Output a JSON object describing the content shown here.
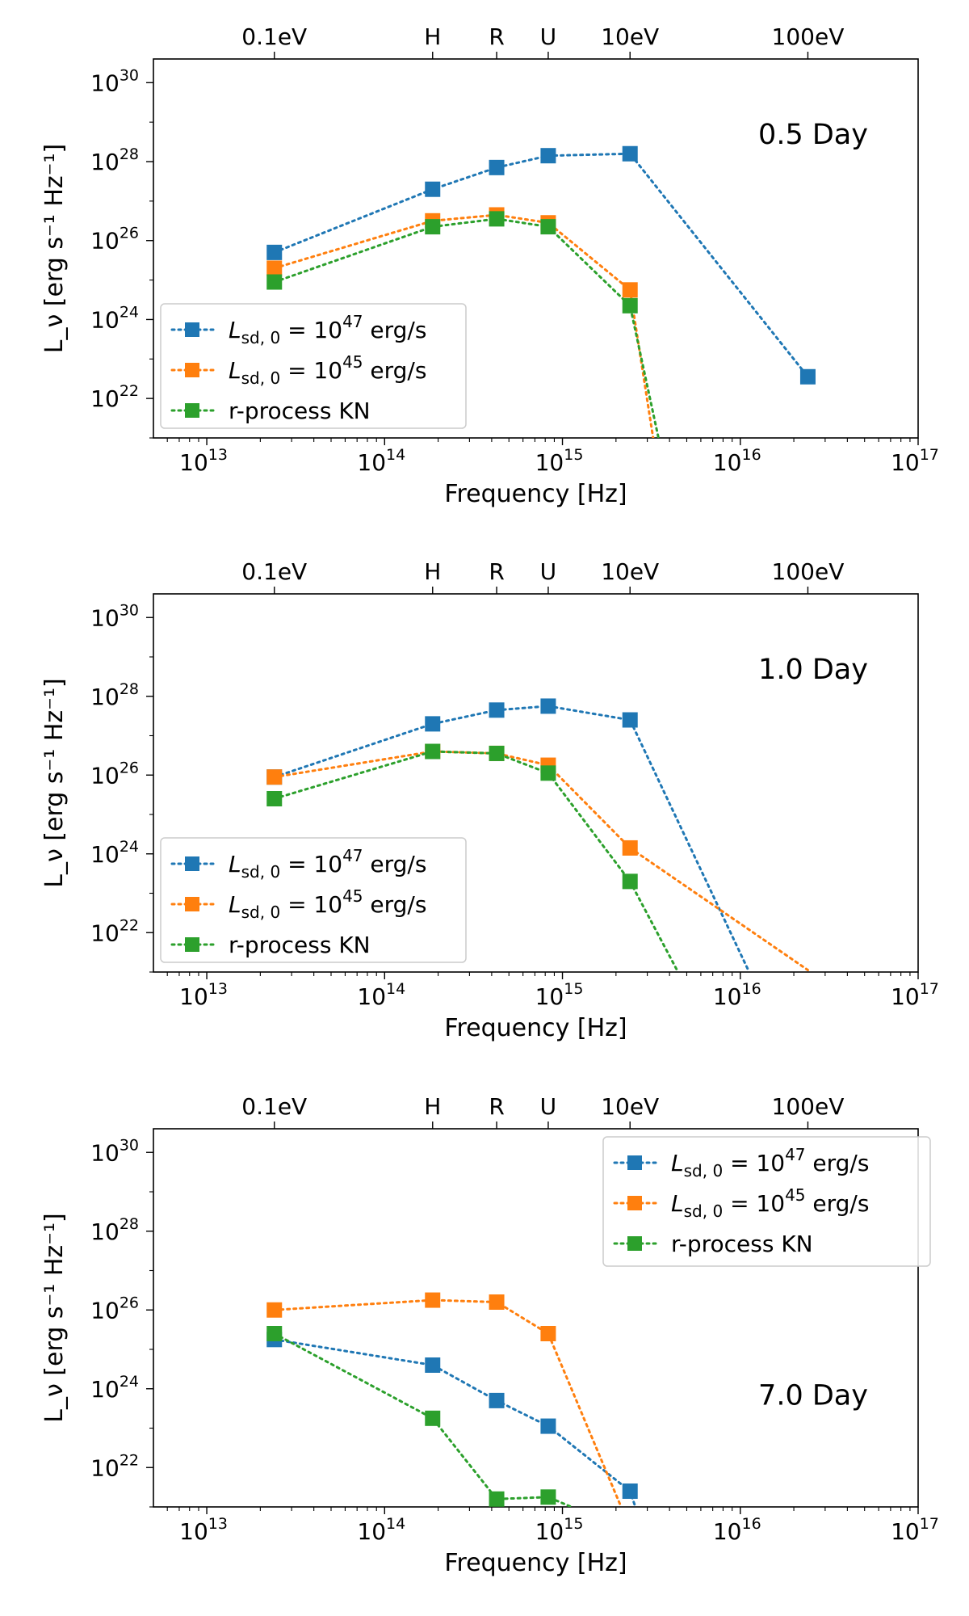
{
  "colors": {
    "sd47": "#1f77b4",
    "sd45": "#ff7f0e",
    "kn": "#2ca02c",
    "axis": "#000000"
  },
  "chart_data": [
    {
      "type": "line",
      "title": "0.5 Day",
      "xlabel": "Frequency [Hz]",
      "ylabel": "L_ν [erg s⁻¹ Hz⁻¹]",
      "xscale": "log",
      "yscale": "log",
      "xlim_log10": [
        12.7,
        17.0
      ],
      "ylim_log10": [
        21.0,
        30.6
      ],
      "xticks": [
        {
          "base": "10",
          "exp": "13",
          "v": 13
        },
        {
          "base": "10",
          "exp": "14",
          "v": 14
        },
        {
          "base": "10",
          "exp": "15",
          "v": 15
        },
        {
          "base": "10",
          "exp": "16",
          "v": 16
        },
        {
          "base": "10",
          "exp": "17",
          "v": 17
        }
      ],
      "yticks": [
        {
          "base": "10",
          "exp": "22",
          "v": 22
        },
        {
          "base": "10",
          "exp": "24",
          "v": 24
        },
        {
          "base": "10",
          "exp": "26",
          "v": 26
        },
        {
          "base": "10",
          "exp": "28",
          "v": 28
        },
        {
          "base": "10",
          "exp": "30",
          "v": 30
        }
      ],
      "top_ticks": [
        {
          "label": "0.1eV",
          "v": 13.38
        },
        {
          "label": "H",
          "v": 14.27
        },
        {
          "label": "R",
          "v": 14.63
        },
        {
          "label": "U",
          "v": 14.92
        },
        {
          "label": "10eV",
          "v": 15.38
        },
        {
          "label": "100eV",
          "v": 16.38
        }
      ],
      "legend_loc": "lower-left",
      "series": [
        {
          "name": "L_sd,0 = 10^47 erg/s",
          "key": "sd47",
          "legend": {
            "pre": "L",
            "sub": "sd, 0",
            "mid": " = 10",
            "sup": "47",
            "post": " erg/s"
          },
          "x_log10": [
            13.38,
            14.27,
            14.63,
            14.92,
            15.38,
            16.38
          ],
          "y_log10": [
            25.7,
            27.3,
            27.85,
            28.15,
            28.2,
            22.55
          ]
        },
        {
          "name": "L_sd,0 = 10^45 erg/s",
          "key": "sd45",
          "legend": {
            "pre": "L",
            "sub": "sd, 0",
            "mid": " = 10",
            "sup": "45",
            "post": " erg/s"
          },
          "x_log10": [
            13.38,
            14.27,
            14.63,
            14.92,
            15.38,
            15.51
          ],
          "y_log10": [
            25.3,
            26.5,
            26.65,
            26.45,
            24.75,
            21.0
          ]
        },
        {
          "name": "r-process KN",
          "key": "kn",
          "legend": {
            "pre": "r-process KN"
          },
          "x_log10": [
            13.38,
            14.27,
            14.63,
            14.92,
            15.38,
            15.54
          ],
          "y_log10": [
            24.95,
            26.35,
            26.55,
            26.35,
            24.35,
            21.0
          ]
        }
      ]
    },
    {
      "type": "line",
      "title": "1.0 Day",
      "xlabel": "Frequency [Hz]",
      "ylabel": "L_ν [erg s⁻¹ Hz⁻¹]",
      "xscale": "log",
      "yscale": "log",
      "xlim_log10": [
        12.7,
        17.0
      ],
      "ylim_log10": [
        21.0,
        30.6
      ],
      "xticks": [
        {
          "base": "10",
          "exp": "13",
          "v": 13
        },
        {
          "base": "10",
          "exp": "14",
          "v": 14
        },
        {
          "base": "10",
          "exp": "15",
          "v": 15
        },
        {
          "base": "10",
          "exp": "16",
          "v": 16
        },
        {
          "base": "10",
          "exp": "17",
          "v": 17
        }
      ],
      "yticks": [
        {
          "base": "10",
          "exp": "22",
          "v": 22
        },
        {
          "base": "10",
          "exp": "24",
          "v": 24
        },
        {
          "base": "10",
          "exp": "26",
          "v": 26
        },
        {
          "base": "10",
          "exp": "28",
          "v": 28
        },
        {
          "base": "10",
          "exp": "30",
          "v": 30
        }
      ],
      "top_ticks": [
        {
          "label": "0.1eV",
          "v": 13.38
        },
        {
          "label": "H",
          "v": 14.27
        },
        {
          "label": "R",
          "v": 14.63
        },
        {
          "label": "U",
          "v": 14.92
        },
        {
          "label": "10eV",
          "v": 15.38
        },
        {
          "label": "100eV",
          "v": 16.38
        }
      ],
      "legend_loc": "lower-left",
      "series": [
        {
          "name": "L_sd,0 = 10^47 erg/s",
          "key": "sd47",
          "legend": {
            "pre": "L",
            "sub": "sd, 0",
            "mid": " = 10",
            "sup": "47",
            "post": " erg/s"
          },
          "x_log10": [
            13.38,
            14.27,
            14.63,
            14.92,
            15.38,
            16.05
          ],
          "y_log10": [
            25.95,
            27.3,
            27.65,
            27.75,
            27.4,
            21.0
          ]
        },
        {
          "name": "L_sd,0 = 10^45 erg/s",
          "key": "sd45",
          "legend": {
            "pre": "L",
            "sub": "sd, 0",
            "mid": " = 10",
            "sup": "45",
            "post": " erg/s"
          },
          "x_log10": [
            13.38,
            14.27,
            14.63,
            14.92,
            15.38,
            16.38
          ],
          "y_log10": [
            25.95,
            26.6,
            26.55,
            26.25,
            24.15,
            21.05
          ]
        },
        {
          "name": "r-process KN",
          "key": "kn",
          "legend": {
            "pre": "r-process KN"
          },
          "x_log10": [
            13.38,
            14.27,
            14.63,
            14.92,
            15.38,
            15.65
          ],
          "y_log10": [
            25.4,
            26.6,
            26.55,
            26.05,
            23.3,
            21.0
          ]
        }
      ]
    },
    {
      "type": "line",
      "title": "7.0 Day",
      "xlabel": "Frequency [Hz]",
      "ylabel": "L_ν [erg s⁻¹ Hz⁻¹]",
      "xscale": "log",
      "yscale": "log",
      "xlim_log10": [
        12.7,
        17.0
      ],
      "ylim_log10": [
        21.0,
        30.6
      ],
      "xticks": [
        {
          "base": "10",
          "exp": "13",
          "v": 13
        },
        {
          "base": "10",
          "exp": "14",
          "v": 14
        },
        {
          "base": "10",
          "exp": "15",
          "v": 15
        },
        {
          "base": "10",
          "exp": "16",
          "v": 16
        },
        {
          "base": "10",
          "exp": "17",
          "v": 17
        }
      ],
      "yticks": [
        {
          "base": "10",
          "exp": "22",
          "v": 22
        },
        {
          "base": "10",
          "exp": "24",
          "v": 24
        },
        {
          "base": "10",
          "exp": "26",
          "v": 26
        },
        {
          "base": "10",
          "exp": "28",
          "v": 28
        },
        {
          "base": "10",
          "exp": "30",
          "v": 30
        }
      ],
      "top_ticks": [
        {
          "label": "0.1eV",
          "v": 13.38
        },
        {
          "label": "H",
          "v": 14.27
        },
        {
          "label": "R",
          "v": 14.63
        },
        {
          "label": "U",
          "v": 14.92
        },
        {
          "label": "10eV",
          "v": 15.38
        },
        {
          "label": "100eV",
          "v": 16.38
        }
      ],
      "legend_loc": "upper-right",
      "series": [
        {
          "name": "L_sd,0 = 10^47 erg/s",
          "key": "sd47",
          "legend": {
            "pre": "L",
            "sub": "sd, 0",
            "mid": " = 10",
            "sup": "47",
            "post": " erg/s"
          },
          "x_log10": [
            13.38,
            14.27,
            14.63,
            14.92,
            15.38,
            15.41
          ],
          "y_log10": [
            25.25,
            24.6,
            23.7,
            23.05,
            21.4,
            21.0
          ]
        },
        {
          "name": "L_sd,0 = 10^45 erg/s",
          "key": "sd45",
          "legend": {
            "pre": "L",
            "sub": "sd, 0",
            "mid": " = 10",
            "sup": "45",
            "post": " erg/s"
          },
          "x_log10": [
            13.38,
            14.27,
            14.63,
            14.92,
            15.33
          ],
          "y_log10": [
            26.0,
            26.25,
            26.2,
            25.4,
            21.0
          ]
        },
        {
          "name": "r-process KN",
          "key": "kn",
          "legend": {
            "pre": "r-process KN"
          },
          "x_log10": [
            13.38,
            14.27,
            14.63,
            14.92,
            15.05
          ],
          "y_log10": [
            25.4,
            23.25,
            21.2,
            21.25,
            21.0
          ]
        }
      ]
    }
  ]
}
